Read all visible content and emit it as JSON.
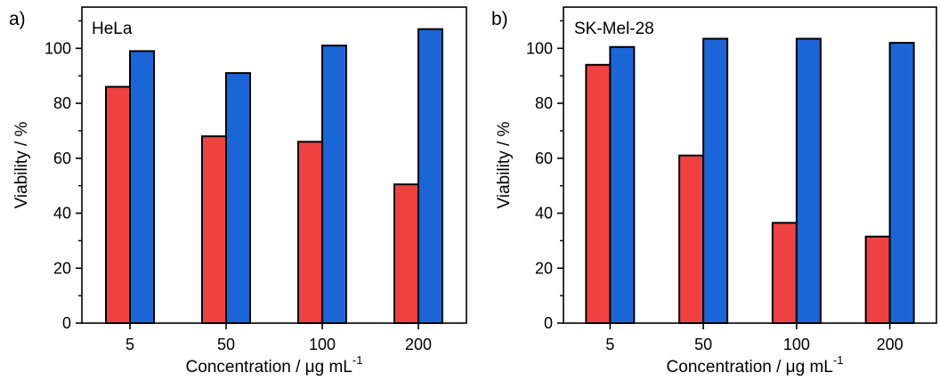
{
  "chart_data": [
    {
      "type": "bar",
      "panel_label": "a)",
      "title": "HeLa",
      "xlabel": "Concentration / μg mL",
      "xlabel_sup": "-1",
      "ylabel": "Viability / %",
      "ylim": [
        0,
        115
      ],
      "yticks": [
        0,
        20,
        40,
        60,
        80,
        100
      ],
      "categories": [
        "5",
        "50",
        "100",
        "200"
      ],
      "series": [
        {
          "color": "#ef4141",
          "values": [
            86,
            68,
            66,
            50.5
          ]
        },
        {
          "color": "#1a66d9",
          "values": [
            99,
            91,
            101,
            107
          ]
        }
      ],
      "grid": false,
      "legend": "none"
    },
    {
      "type": "bar",
      "panel_label": "b)",
      "title": "SK-Mel-28",
      "xlabel": "Concentration / μg mL",
      "xlabel_sup": "-1",
      "ylabel": "Viability / %",
      "ylim": [
        0,
        115
      ],
      "yticks": [
        0,
        20,
        40,
        60,
        80,
        100
      ],
      "categories": [
        "5",
        "50",
        "100",
        "200"
      ],
      "series": [
        {
          "color": "#ef4141",
          "values": [
            94,
            61,
            36.5,
            31.5
          ]
        },
        {
          "color": "#1a66d9",
          "values": [
            100.5,
            103.5,
            103.5,
            102
          ]
        }
      ],
      "grid": false,
      "legend": "none"
    }
  ]
}
